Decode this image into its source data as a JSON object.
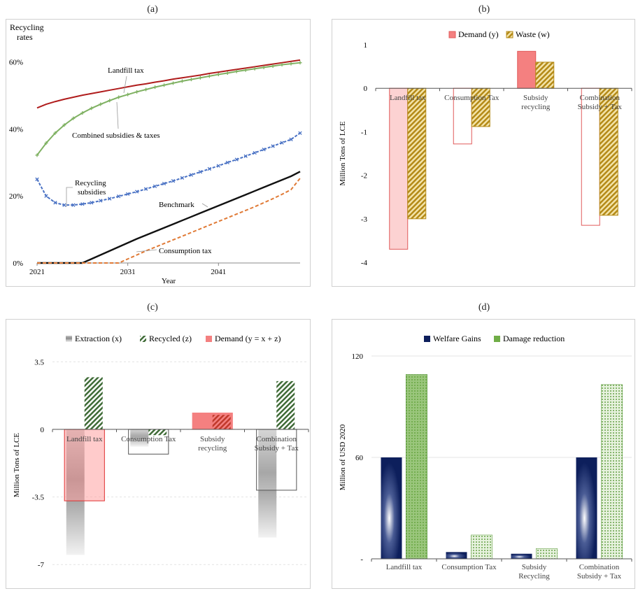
{
  "panels": {
    "a": {
      "label": "(a)"
    },
    "b": {
      "label": "(b)"
    },
    "c": {
      "label": "(c)"
    },
    "d": {
      "label": "(d)"
    }
  },
  "chart_data": [
    {
      "id": "a",
      "type": "line",
      "ylabel_lines": [
        "Recycling",
        "rates"
      ],
      "xlabel": "Year",
      "x": [
        2021,
        2022,
        2023,
        2024,
        2025,
        2026,
        2027,
        2028,
        2029,
        2030,
        2031,
        2032,
        2033,
        2034,
        2035,
        2036,
        2037,
        2038,
        2039,
        2040,
        2041,
        2042,
        2043,
        2044,
        2045,
        2046,
        2047,
        2048,
        2049,
        2050
      ],
      "xticks": [
        2021,
        2031,
        2041
      ],
      "ylim": [
        0,
        0.66
      ],
      "yticks": [
        0,
        0.2,
        0.4,
        0.6
      ],
      "yticklabels": [
        "0%",
        "20%",
        "40%",
        "60%"
      ],
      "series": [
        {
          "name": "Landfill tax",
          "color": "#b01c1c",
          "dash": "",
          "marker": "none",
          "values": [
            0.463,
            0.474,
            0.482,
            0.489,
            0.495,
            0.501,
            0.506,
            0.511,
            0.516,
            0.521,
            0.526,
            0.531,
            0.535,
            0.54,
            0.544,
            0.549,
            0.553,
            0.557,
            0.561,
            0.566,
            0.57,
            0.574,
            0.578,
            0.582,
            0.586,
            0.59,
            0.594,
            0.598,
            0.602,
            0.606
          ]
        },
        {
          "name": "Combined subsidies & taxes",
          "color": "#7fb162",
          "dash": "",
          "marker": "plus",
          "values": [
            0.322,
            0.358,
            0.388,
            0.412,
            0.432,
            0.448,
            0.462,
            0.474,
            0.485,
            0.495,
            0.503,
            0.511,
            0.518,
            0.525,
            0.531,
            0.537,
            0.543,
            0.548,
            0.553,
            0.558,
            0.563,
            0.567,
            0.572,
            0.576,
            0.58,
            0.584,
            0.588,
            0.592,
            0.595,
            0.598
          ]
        },
        {
          "name": "Recycling subsidies",
          "color": "#4a72c4",
          "dash": "4,2",
          "marker": "x",
          "values": [
            0.25,
            0.2,
            0.18,
            0.173,
            0.173,
            0.176,
            0.18,
            0.186,
            0.192,
            0.199,
            0.206,
            0.213,
            0.221,
            0.229,
            0.237,
            0.245,
            0.254,
            0.263,
            0.272,
            0.281,
            0.29,
            0.3,
            0.309,
            0.319,
            0.329,
            0.339,
            0.349,
            0.359,
            0.369,
            0.388
          ]
        },
        {
          "name": "Benchmark",
          "color": "#111111",
          "dash": "",
          "marker": "none",
          "values": [
            0,
            0,
            0,
            0,
            0,
            0,
            0.012,
            0.024,
            0.036,
            0.048,
            0.06,
            0.072,
            0.083,
            0.094,
            0.105,
            0.116,
            0.127,
            0.138,
            0.149,
            0.16,
            0.171,
            0.182,
            0.193,
            0.204,
            0.215,
            0.226,
            0.237,
            0.248,
            0.259,
            0.273
          ]
        },
        {
          "name": "Consumption tax",
          "color": "#e07a36",
          "dash": "5,3",
          "marker": "none",
          "values": [
            0,
            0,
            0,
            0,
            0,
            0,
            0,
            0,
            0,
            0,
            0.012,
            0.024,
            0.036,
            0.047,
            0.058,
            0.069,
            0.08,
            0.091,
            0.102,
            0.113,
            0.124,
            0.135,
            0.146,
            0.157,
            0.168,
            0.18,
            0.192,
            0.205,
            0.219,
            0.253
          ]
        }
      ]
    },
    {
      "id": "b",
      "type": "bar",
      "ylabel": "Million Tons of LCE",
      "ylim": [
        -4,
        1
      ],
      "yticks": [
        -4,
        -3,
        -2,
        -1,
        0,
        1
      ],
      "categories": [
        "Landfill tax",
        "Consumption Tax",
        "Subsidy recycling",
        "Combination Subsidy + Tax"
      ],
      "category_lines": [
        [
          "Landfill tax"
        ],
        [
          "Consumption Tax"
        ],
        [
          "Subsidy",
          "recycling"
        ],
        [
          "Combination",
          "Subsidy + Tax"
        ]
      ],
      "series": [
        {
          "name": "Demand (y)",
          "color": "#f48080",
          "values": [
            -3.7,
            -1.28,
            0.85,
            -3.15
          ]
        },
        {
          "name": "Waste (w)",
          "color": "#c9a227",
          "values": [
            -3.0,
            -0.88,
            0.6,
            -2.92
          ]
        }
      ]
    },
    {
      "id": "c",
      "type": "bar",
      "ylabel": "Million Tons of LCE",
      "ylim": [
        -7.5,
        3.8
      ],
      "yticks": [
        -7,
        -3.5,
        0,
        3.5
      ],
      "yticklabels": [
        "-7",
        "-3.5",
        "0",
        "3.5"
      ],
      "categories": [
        "Landfill tax",
        "Consumption Tax",
        "Subsidy recycling",
        "Combination Subsidy + Tax"
      ],
      "category_lines": [
        [
          "Landfill tax"
        ],
        [
          "Consumption Tax"
        ],
        [
          "Subsidy",
          "recycling"
        ],
        [
          "Combination",
          "Subsidy + Tax"
        ]
      ],
      "series": [
        {
          "name": "Extraction (x)",
          "color": "#9a9a9a",
          "values": [
            -6.5,
            -0.9,
            0.1,
            -5.6
          ]
        },
        {
          "name": "Recycled (z)",
          "color": "#3f6b37",
          "values": [
            2.7,
            -0.3,
            0.75,
            2.5
          ]
        },
        {
          "name": "Demand (y = x + z)",
          "color": "#f48080",
          "values": [
            -3.7,
            -1.28,
            0.85,
            -3.15
          ]
        }
      ]
    },
    {
      "id": "d",
      "type": "bar",
      "ylabel": "Million of USD 2020",
      "ylim": [
        0,
        120
      ],
      "yticks": [
        0,
        60,
        120
      ],
      "yticklabels": [
        "-",
        "60",
        "120"
      ],
      "categories": [
        "Landfill tax",
        "Consumption Tax",
        "Subsidy Recycling",
        "Combination Subsidy + Tax"
      ],
      "category_lines": [
        [
          "Landfill tax"
        ],
        [
          "Consumption Tax"
        ],
        [
          "Subsidy",
          "Recycling"
        ],
        [
          "Combination",
          "Subsidy + Tax"
        ]
      ],
      "series": [
        {
          "name": "Welfare Gains",
          "color": "#0d1f5c",
          "values": [
            60,
            4,
            3,
            60
          ]
        },
        {
          "name": "Damage reduction",
          "color": "#70ad47",
          "values": [
            109,
            14,
            6,
            103
          ]
        }
      ]
    }
  ]
}
